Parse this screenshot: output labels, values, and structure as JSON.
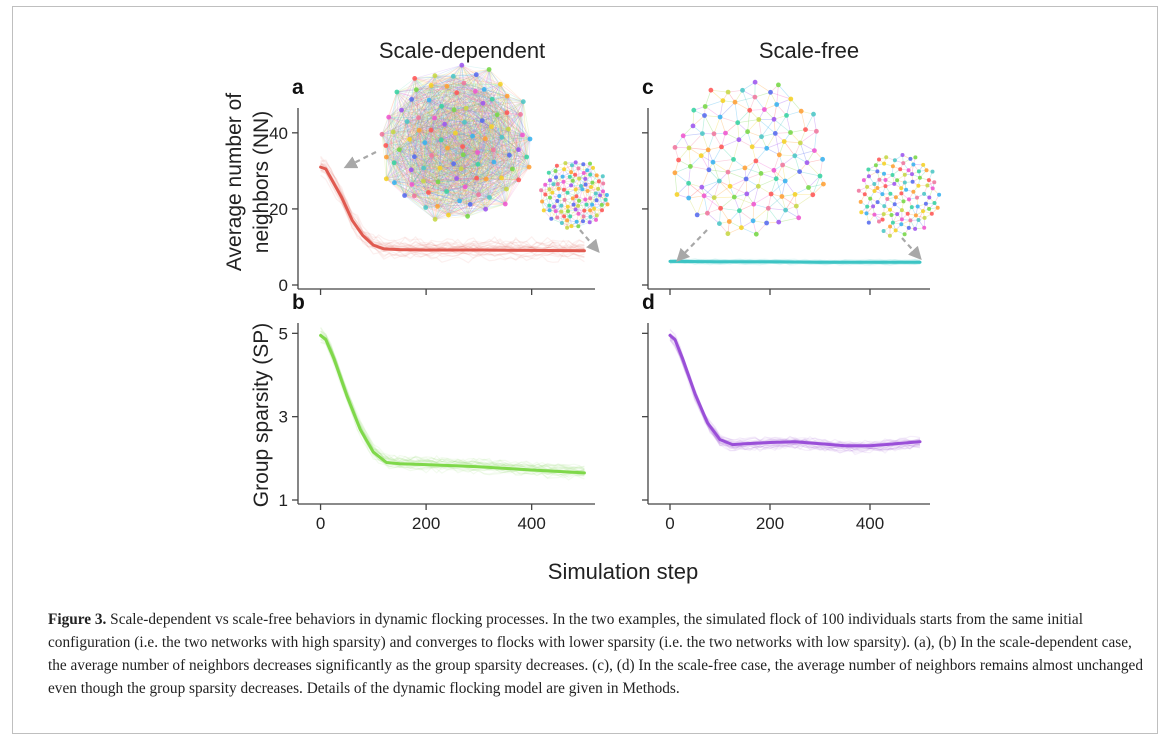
{
  "column_titles": {
    "left": "Scale-dependent",
    "right": "Scale-free"
  },
  "y_label_top_line1": "Average number of",
  "y_label_top_line2": "neighbors (NN)",
  "y_label_bottom": "Group sparsity (SP)",
  "x_label": "Simulation step",
  "caption": {
    "label": "Figure 3.",
    "text": " Scale-dependent vs scale-free behaviors in dynamic flocking processes. In the two examples, the simulated flock of 100 individuals starts from the same initial configuration (i.e. the two networks with high sparsity) and converges to flocks with lower sparsity (i.e. the two networks with low sparsity). (a), (b) In the scale-dependent case, the average number of neighbors decreases significantly as the group sparsity decreases. (c), (d) In the scale-free case, the average number of neighbors remains almost unchanged even though the group sparsity decreases. Details of the dynamic flocking model are given in Methods."
  },
  "colors": {
    "a": "#e05a50",
    "b": "#7fd84a",
    "c": "#3cc4c4",
    "d": "#9a4fd8",
    "axis": "#444444",
    "arrow": "#a8a8a8"
  },
  "chart_data": [
    {
      "panel": "a",
      "type": "line",
      "xlabel": "",
      "ylabel": "Average number of neighbors (NN)",
      "xlim": [
        -20,
        520
      ],
      "ylim": [
        0,
        46
      ],
      "yticks": [
        0,
        20,
        40
      ],
      "xticks": [
        0,
        200,
        400
      ],
      "show_xticklabels": false,
      "series": [
        {
          "x": [
            0,
            10,
            20,
            40,
            60,
            80,
            100,
            120,
            150,
            200,
            300,
            400,
            500
          ],
          "y": [
            31,
            30.5,
            28,
            23,
            17,
            13,
            10.5,
            9.5,
            9.3,
            9.2,
            9.2,
            9.1,
            9.0
          ]
        }
      ]
    },
    {
      "panel": "b",
      "type": "line",
      "xlabel": "Simulation step",
      "ylabel": "Group sparsity (SP)",
      "xlim": [
        -20,
        520
      ],
      "ylim": [
        1,
        5.2
      ],
      "yticks": [
        1,
        3,
        5
      ],
      "xticks": [
        0,
        200,
        400
      ],
      "show_xticklabels": true,
      "series": [
        {
          "x": [
            0,
            10,
            25,
            50,
            75,
            100,
            125,
            150,
            200,
            300,
            400,
            500
          ],
          "y": [
            4.95,
            4.85,
            4.4,
            3.5,
            2.7,
            2.15,
            1.9,
            1.87,
            1.85,
            1.8,
            1.72,
            1.65
          ]
        }
      ]
    },
    {
      "panel": "c",
      "type": "line",
      "xlabel": "",
      "ylabel": "",
      "xlim": [
        -20,
        520
      ],
      "ylim": [
        0,
        46
      ],
      "yticks": [
        0,
        20,
        40
      ],
      "xticks": [
        0,
        200,
        400
      ],
      "show_xticklabels": false,
      "series": [
        {
          "x": [
            0,
            100,
            200,
            300,
            400,
            500
          ],
          "y": [
            6.2,
            6.1,
            6.1,
            6.0,
            6.0,
            6.0
          ]
        }
      ]
    },
    {
      "panel": "d",
      "type": "line",
      "xlabel": "Simulation step",
      "ylabel": "",
      "xlim": [
        -20,
        520
      ],
      "ylim": [
        1,
        5.2
      ],
      "yticks": [
        1,
        3,
        5
      ],
      "xticks": [
        0,
        200,
        400
      ],
      "show_xticklabels": true,
      "series": [
        {
          "x": [
            0,
            10,
            25,
            50,
            75,
            100,
            125,
            150,
            200,
            250,
            300,
            350,
            400,
            450,
            500
          ],
          "y": [
            4.95,
            4.85,
            4.4,
            3.55,
            2.85,
            2.45,
            2.33,
            2.35,
            2.38,
            2.4,
            2.35,
            2.3,
            2.3,
            2.35,
            2.4
          ]
        }
      ]
    }
  ]
}
